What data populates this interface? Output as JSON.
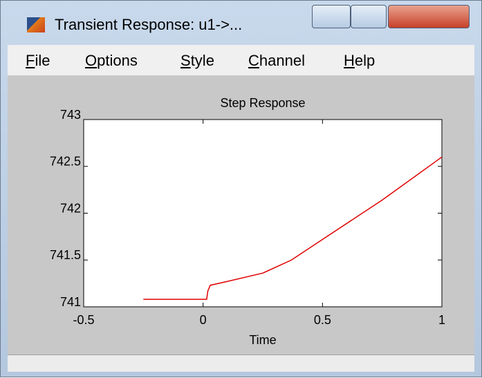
{
  "window_title": "Transient Response: u1->...",
  "menu": [
    "File",
    "Options",
    "Style",
    "Channel",
    "Help"
  ],
  "chart_data": {
    "type": "line",
    "title": "Step Response",
    "xlabel": "Time",
    "x": [
      -0.25,
      0,
      0.015,
      0.02,
      0.03,
      0.1,
      0.25,
      0.37,
      0.5,
      0.75,
      1
    ],
    "values": [
      741.08,
      741.08,
      741.08,
      741.17,
      741.23,
      741.27,
      741.36,
      741.5,
      741.72,
      742.14,
      742.6
    ],
    "color": "#e00000",
    "xlim": [
      -0.5,
      1
    ],
    "xticks": [
      -0.5,
      0,
      0.5,
      1
    ],
    "ylim": [
      741,
      743
    ],
    "yticks": [
      741,
      741.5,
      742,
      742.5,
      743
    ]
  }
}
